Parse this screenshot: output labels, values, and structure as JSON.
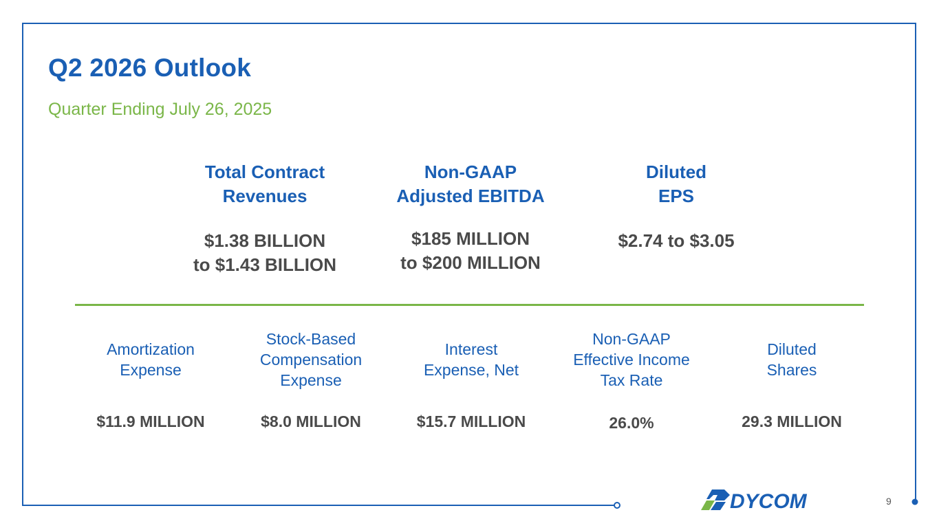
{
  "slide": {
    "title": "Q2 2026 Outlook",
    "subtitle": "Quarter Ending July 26, 2025",
    "page_number": "9"
  },
  "top_metrics": [
    {
      "heading_line1": "Total Contract",
      "heading_line2": "Revenues",
      "value_line1": "$1.38 BILLION",
      "value_line2": "to $1.43 BILLION"
    },
    {
      "heading_line1": "Non-GAAP",
      "heading_line2": "Adjusted EBITDA",
      "value_line1": "$185 MILLION",
      "value_line2": "to $200 MILLION"
    },
    {
      "heading_line1": "Diluted",
      "heading_line2": "EPS",
      "value_line1": "$2.74 to $3.05",
      "value_line2": ""
    }
  ],
  "bottom_metrics": [
    {
      "heading": [
        "Amortization",
        "Expense"
      ],
      "value": "$11.9 MILLION"
    },
    {
      "heading": [
        "Stock-Based",
        "Compensation",
        "Expense"
      ],
      "value": "$8.0 MILLION"
    },
    {
      "heading": [
        "Interest",
        "Expense, Net"
      ],
      "value": "$15.7 MILLION"
    },
    {
      "heading": [
        "Non-GAAP",
        "Effective Income",
        "Tax Rate"
      ],
      "value": "26.0%"
    },
    {
      "heading": [
        "Diluted",
        "Shares"
      ],
      "value": "29.3 MILLION"
    }
  ],
  "logo": {
    "text": "DYCOM"
  },
  "colors": {
    "primary_blue": "#1a5fb4",
    "accent_green": "#7ab648",
    "value_gray": "#4a4a4a"
  }
}
